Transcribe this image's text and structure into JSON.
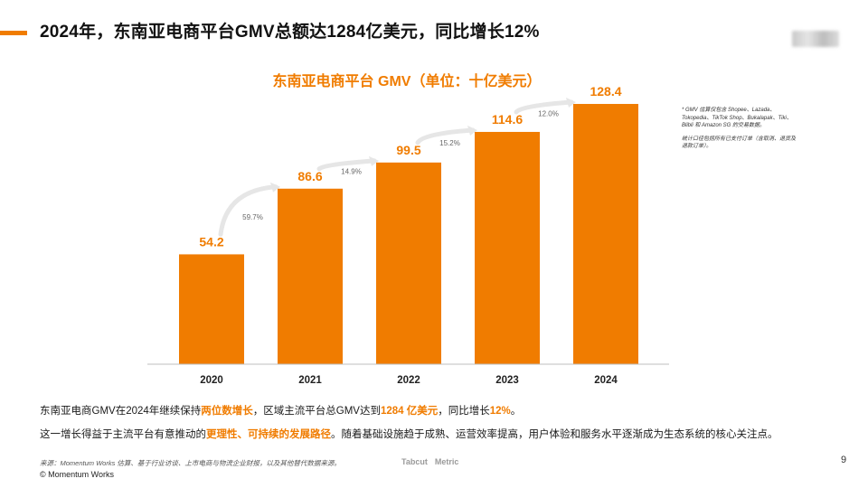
{
  "slide": {
    "title": "2024年，东南亚电商平台GMV总额达1284亿美元，同比增长12%",
    "page_number": "9",
    "copyright": "© Momentum Works",
    "source": "来源：Momentum Works 估算、基于行业访谈、上市电商与物流企业财报，以及其他替代数据来源。",
    "brand_tabcut": "Tabcut",
    "brand_metric": "Metric"
  },
  "notes": {
    "line1": "* GMV 估算仅包含 Shopee、Lazada、Tokopedia、TikTok Shop、Bukalapak、Tiki、Blibli 和 Amazon SG 的交易数据。",
    "line2": "统计口径包括所有已支付订单（含取消、退货及退款订单）。"
  },
  "description": {
    "p1_a": "东南亚电商GMV在2024年继续保持",
    "p1_hl1": "两位数增长",
    "p1_b": "，区域主流平台总GMV达到",
    "p1_hl2": "1284 亿美元",
    "p1_c": "，同比增长",
    "p1_hl3": "12%",
    "p1_d": "。",
    "p2_a": "这一增长得益于主流平台有意推动的",
    "p2_hl1": "更理性、可持续的发展路径",
    "p2_b": "。随着基础设施趋于成熟、运营效率提高，用户体验和服务水平逐渐成为生态系统的核心关注点。"
  },
  "colors": {
    "accent": "#f07c00",
    "growth_text": "#666666",
    "arrow": "#e6e6e6"
  },
  "chart_data": {
    "type": "bar",
    "title": "东南亚电商平台 GMV（单位：十亿美元）",
    "categories": [
      "2020",
      "2021",
      "2022",
      "2023",
      "2024"
    ],
    "values": [
      54.2,
      86.6,
      99.5,
      114.6,
      128.4
    ],
    "value_labels": [
      "54.2",
      "86.6",
      "99.5",
      "114.6",
      "128.4"
    ],
    "growth_labels": [
      "59.7%",
      "14.9%",
      "15.2%",
      "12.0%"
    ],
    "xlabel": "",
    "ylabel": "",
    "ylim": [
      0,
      140
    ],
    "grid": false,
    "legend": "none"
  }
}
